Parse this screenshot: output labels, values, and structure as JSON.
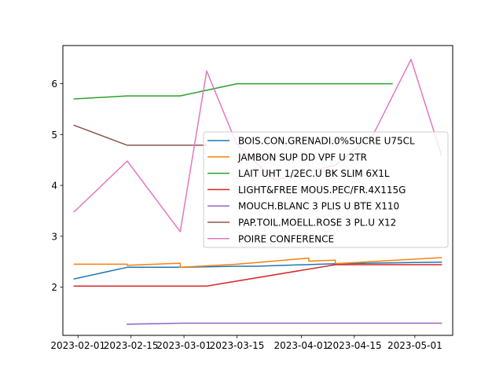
{
  "chart_data": {
    "type": "line",
    "title": "",
    "xlabel": "",
    "ylabel": "",
    "x_axis_type": "date",
    "xlim": [
      "2023-01-28",
      "2023-05-11"
    ],
    "ylim": [
      1.05,
      6.75
    ],
    "x_ticks": [
      {
        "value": "2023-02-01",
        "label": "2023-02-01"
      },
      {
        "value": "2023-02-15",
        "label": "2023-02-15"
      },
      {
        "value": "2023-03-01",
        "label": "2023-03-01"
      },
      {
        "value": "2023-03-15",
        "label": "2023-03-15"
      },
      {
        "value": "2023-04-01",
        "label": "2023-04-01"
      },
      {
        "value": "2023-04-15",
        "label": "2023-04-15"
      },
      {
        "value": "2023-05-01",
        "label": "2023-05-01"
      }
    ],
    "y_ticks": [
      2,
      3,
      4,
      5,
      6
    ],
    "grid": false,
    "legend_position": "center-right",
    "series": [
      {
        "name": "BOIS.CON.GRENADI.0%SUCRE U75CL",
        "color": "#1f77b4",
        "points": [
          [
            "2023-01-31",
            2.16
          ],
          [
            "2023-02-14",
            2.39
          ],
          [
            "2023-02-28",
            2.39
          ],
          [
            "2023-03-15",
            2.41
          ],
          [
            "2023-03-20",
            2.41
          ],
          [
            "2023-04-10",
            2.46
          ],
          [
            "2023-05-08",
            2.49
          ]
        ]
      },
      {
        "name": "JAMBON SUP DD VPF U 2TR",
        "color": "#ff7f0e",
        "points": [
          [
            "2023-01-31",
            2.45
          ],
          [
            "2023-02-14",
            2.45
          ],
          [
            "2023-02-14",
            2.43
          ],
          [
            "2023-02-28",
            2.47
          ],
          [
            "2023-02-28",
            2.39
          ],
          [
            "2023-03-15",
            2.45
          ],
          [
            "2023-03-20",
            2.48
          ],
          [
            "2023-04-03",
            2.57
          ],
          [
            "2023-04-03",
            2.51
          ],
          [
            "2023-04-10",
            2.53
          ],
          [
            "2023-04-10",
            2.46
          ],
          [
            "2023-05-08",
            2.58
          ]
        ]
      },
      {
        "name": "LAIT UHT 1/2EC.U BK SLIM 6X1L",
        "color": "#2ca02c",
        "points": [
          [
            "2023-01-31",
            5.7
          ],
          [
            "2023-02-14",
            5.76
          ],
          [
            "2023-02-28",
            5.76
          ],
          [
            "2023-03-15",
            6.0
          ],
          [
            "2023-04-25",
            6.0
          ]
        ]
      },
      {
        "name": "LIGHT&FREE MOUS.PEC/FR.4X115G",
        "color": "#d62728",
        "points": [
          [
            "2023-01-31",
            2.02
          ],
          [
            "2023-03-07",
            2.02
          ],
          [
            "2023-04-10",
            2.44
          ],
          [
            "2023-05-08",
            2.44
          ]
        ]
      },
      {
        "name": "MOUCH.BLANC 3 PLIS U BTE X110",
        "color": "#9467bd",
        "points": [
          [
            "2023-02-14",
            1.27
          ],
          [
            "2023-02-28",
            1.29
          ],
          [
            "2023-05-08",
            1.29
          ]
        ]
      },
      {
        "name": "PAP.TOIL.MOELL.ROSE 3 PL.U X12",
        "color": "#8c564b",
        "points": [
          [
            "2023-01-31",
            5.18
          ],
          [
            "2023-02-14",
            4.79
          ],
          [
            "2023-03-07",
            4.79
          ]
        ]
      },
      {
        "name": "POIRE CONFERENCE",
        "color": "#e377c2",
        "points": [
          [
            "2023-01-31",
            3.48
          ],
          [
            "2023-02-14",
            4.48
          ],
          [
            "2023-02-28",
            3.09
          ],
          [
            "2023-03-07",
            6.25
          ],
          [
            "2023-03-15",
            4.8
          ],
          [
            "2023-03-25",
            4.1
          ],
          [
            "2023-04-10",
            4.4
          ],
          [
            "2023-04-20",
            5.0
          ],
          [
            "2023-04-30",
            6.48
          ],
          [
            "2023-05-08",
            4.6
          ]
        ]
      }
    ]
  }
}
